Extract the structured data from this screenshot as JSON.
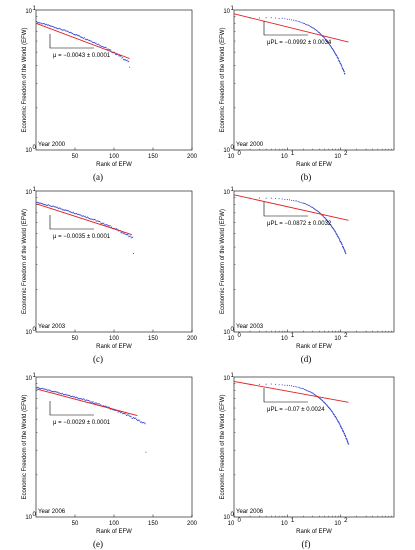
{
  "colors": {
    "data": "#3344cc",
    "fit": "#e02020",
    "axis": "#000000",
    "annotation": "#000000"
  },
  "chart_data": [
    {
      "id": "a",
      "type": "scatter",
      "scale": "linear",
      "caption": "(a)",
      "year_label": "Year 2000",
      "ylabel": "Economic Freedom of the World (EFW)",
      "xlabel": "Rank of EFW",
      "xlim": [
        0,
        200
      ],
      "ylim": [
        1,
        10
      ],
      "xticks": [
        "50",
        "100",
        "150",
        "200"
      ],
      "yticks_top": "10",
      "yticks_bottom": "10",
      "yticks_exp": "1",
      "yticks_bottom_exp": "0",
      "annotation": "μ = −0.0043 ± 0.0001",
      "n_points": 120,
      "y_start": 8.2,
      "y_end": 4.2,
      "tail_y": 3.9,
      "fit": {
        "x1": 1,
        "y1": 8.0,
        "x2": 120,
        "y2": 4.5
      }
    },
    {
      "id": "b",
      "type": "scatter",
      "scale": "loglog",
      "caption": "(b)",
      "year_label": "Year 2000",
      "ylabel": "Economic Freedom of the World (EFW)",
      "xlabel": "Rank of EFW",
      "xlim": [
        1,
        1000
      ],
      "ylim": [
        1,
        10
      ],
      "xticks_exp": [
        "0",
        "1",
        "2"
      ],
      "yticks_exp": "1",
      "yticks_bottom_exp": "0",
      "annotation": "μPL = −0.0992 ± 0.0034",
      "n_points": 120,
      "y_start": 8.8,
      "y_end": 3.5,
      "fit": {
        "x1": 1,
        "y1": 9.4,
        "x2": 140,
        "y2": 5.9
      }
    },
    {
      "id": "c",
      "type": "scatter",
      "scale": "linear",
      "caption": "(c)",
      "year_label": "Year 2003",
      "ylabel": "Economic Freedom of the World (EFW)",
      "xlabel": "Rank of EFW",
      "xlim": [
        0,
        200
      ],
      "ylim": [
        1,
        10
      ],
      "xticks": [
        "50",
        "100",
        "150",
        "200"
      ],
      "yticks_top": "10",
      "yticks_bottom": "10",
      "yticks_exp": "1",
      "yticks_bottom_exp": "0",
      "annotation": "μ = −0.0035 ± 0.0001",
      "n_points": 125,
      "y_start": 8.3,
      "y_end": 4.6,
      "tail_y": 3.6,
      "fit": {
        "x1": 1,
        "y1": 8.1,
        "x2": 123,
        "y2": 4.9
      }
    },
    {
      "id": "d",
      "type": "scatter",
      "scale": "loglog",
      "caption": "(d)",
      "year_label": "Year 2003",
      "ylabel": "Economic Freedom of the World (EFW)",
      "xlabel": "Rank of EFW",
      "xlim": [
        1,
        1000
      ],
      "ylim": [
        1,
        10
      ],
      "xticks_exp": [
        "0",
        "1",
        "2"
      ],
      "yticks_exp": "1",
      "yticks_bottom_exp": "0",
      "annotation": "μPL = −0.0872 ± 0.0032",
      "n_points": 125,
      "y_start": 8.9,
      "y_end": 3.6,
      "fit": {
        "x1": 1,
        "y1": 9.4,
        "x2": 140,
        "y2": 6.2
      }
    },
    {
      "id": "e",
      "type": "scatter",
      "scale": "linear",
      "caption": "(e)",
      "year_label": "Year 2006",
      "ylabel": "Economic Freedom of the World (EFW)",
      "xlabel": "Rank of EFW",
      "xlim": [
        0,
        200
      ],
      "ylim": [
        1,
        10
      ],
      "xticks": [
        "50",
        "100",
        "150",
        "200"
      ],
      "yticks_top": "10",
      "yticks_bottom": "10",
      "yticks_exp": "1",
      "yticks_bottom_exp": "0",
      "annotation": "μ = −0.0029 ± 0.0001",
      "n_points": 141,
      "y_start": 8.4,
      "y_end": 4.6,
      "tail_y": 2.9,
      "fit": {
        "x1": 1,
        "y1": 8.2,
        "x2": 130,
        "y2": 5.3
      }
    },
    {
      "id": "f",
      "type": "scatter",
      "scale": "loglog",
      "caption": "(f)",
      "year_label": "Year 2006",
      "ylabel": "Economic Freedom of the World (EFW)",
      "xlabel": "Rank of EFW",
      "xlim": [
        1,
        1000
      ],
      "ylim": [
        1,
        10
      ],
      "xticks_exp": [
        "0",
        "1",
        "2"
      ],
      "yticks_exp": "1",
      "yticks_bottom_exp": "0",
      "annotation": "μPL = −0.07 ± 0.0024",
      "n_points": 141,
      "y_start": 8.9,
      "y_end": 3.3,
      "fit": {
        "x1": 1,
        "y1": 9.3,
        "x2": 140,
        "y2": 6.6
      }
    }
  ]
}
